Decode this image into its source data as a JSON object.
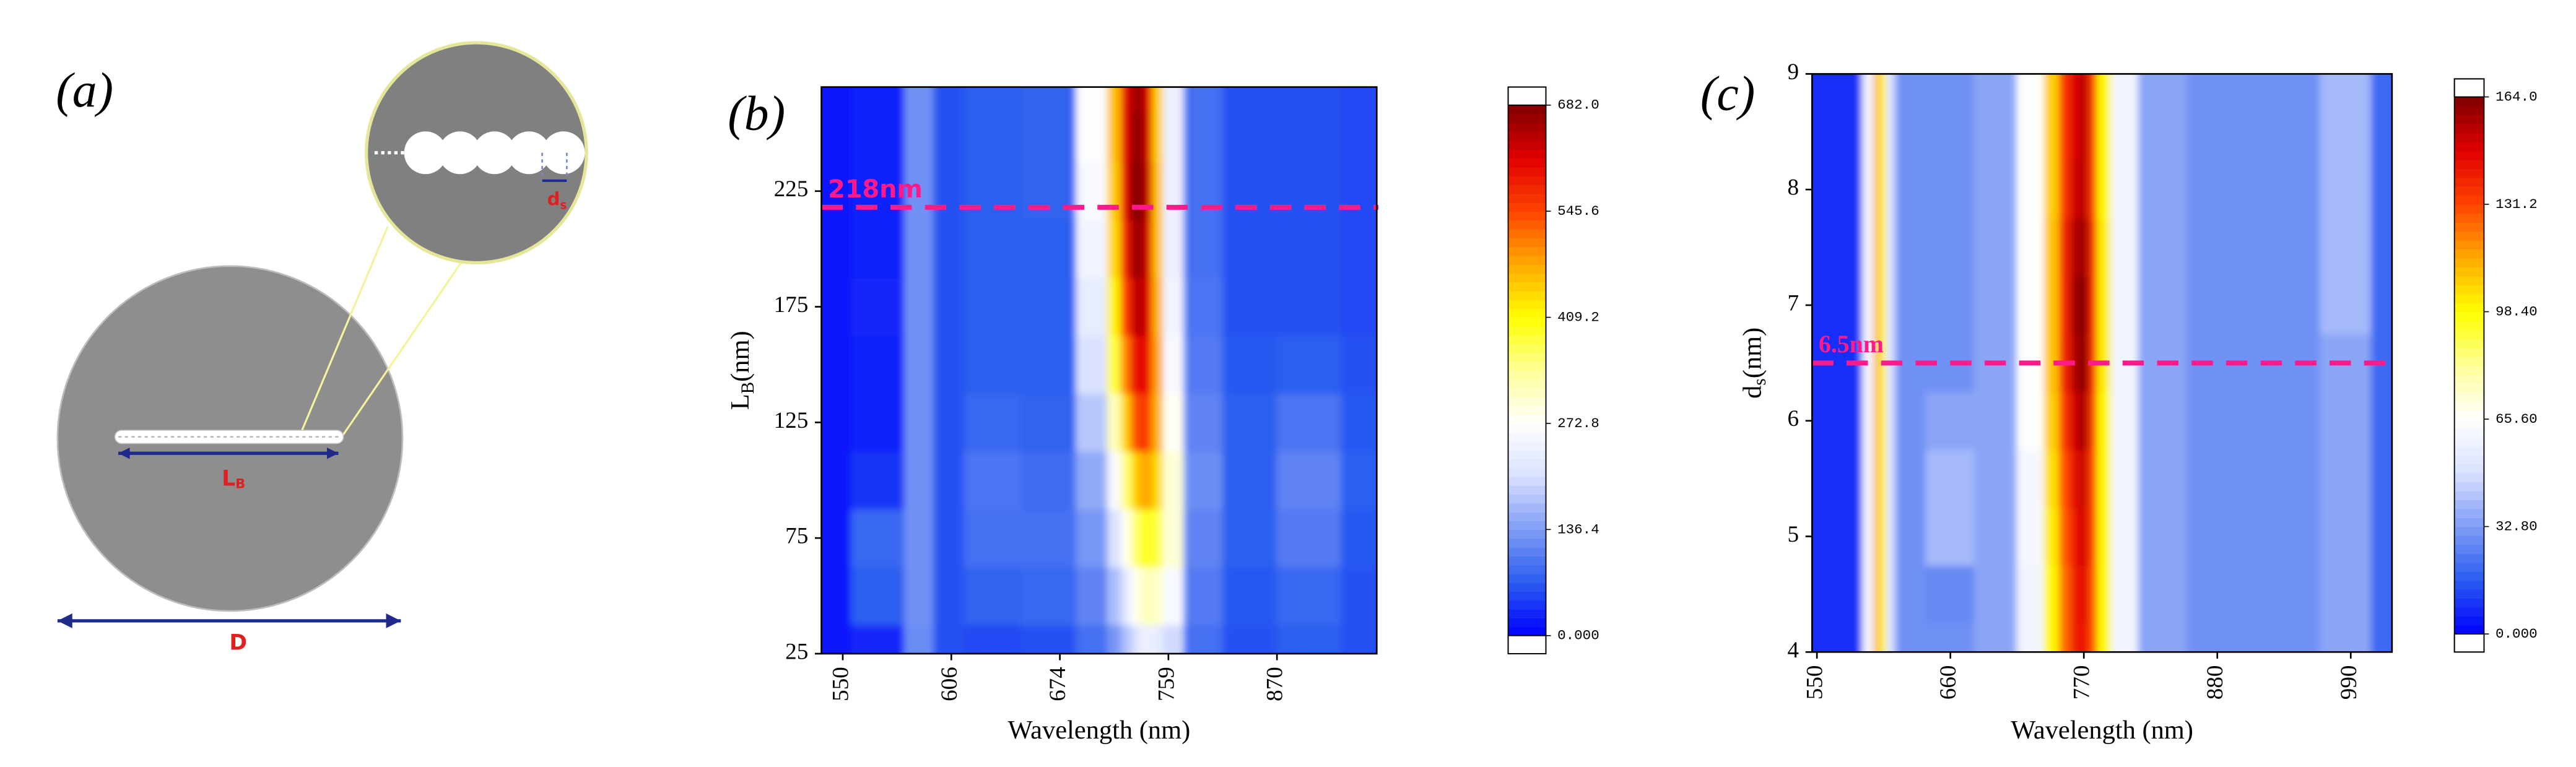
{
  "diagram": {
    "panel_label": "(a)",
    "length_label": {
      "text": "L",
      "subscript": "B"
    },
    "spacing_label": {
      "text": "d",
      "subscript": "s"
    },
    "diameter_label": "D"
  },
  "chart_data": [
    {
      "type": "heatmap",
      "panel_label": "(b)",
      "xlabel": "Wavelength (nm)",
      "ylabel": {
        "text": "L",
        "subscript": "B",
        "suffix": "(nm)"
      },
      "x": [
        539,
        570,
        594,
        600,
        630,
        670,
        705,
        718,
        726,
        732,
        737,
        743,
        750,
        760,
        790,
        840,
        900,
        972
      ],
      "y": [
        25,
        50,
        75,
        100,
        125,
        150,
        175,
        200,
        225,
        250,
        270
      ],
      "z": [
        [
          15,
          30,
          120,
          60,
          55,
          60,
          90,
          130,
          170,
          200,
          230,
          240,
          230,
          200,
          90,
          60,
          70,
          60
        ],
        [
          15,
          70,
          125,
          60,
          75,
          80,
          110,
          170,
          220,
          270,
          300,
          320,
          310,
          260,
          100,
          65,
          80,
          60
        ],
        [
          15,
          80,
          125,
          60,
          90,
          90,
          130,
          210,
          280,
          340,
          380,
          400,
          380,
          300,
          110,
          70,
          100,
          65
        ],
        [
          15,
          40,
          125,
          60,
          95,
          85,
          150,
          260,
          350,
          430,
          470,
          480,
          440,
          300,
          120,
          70,
          110,
          70
        ],
        [
          15,
          25,
          125,
          60,
          80,
          75,
          180,
          320,
          440,
          520,
          560,
          550,
          470,
          280,
          110,
          70,
          95,
          65
        ],
        [
          15,
          25,
          125,
          60,
          70,
          70,
          210,
          380,
          500,
          580,
          610,
          590,
          480,
          260,
          100,
          65,
          70,
          60
        ],
        [
          15,
          30,
          125,
          60,
          70,
          70,
          230,
          420,
          550,
          620,
          650,
          610,
          470,
          250,
          95,
          60,
          60,
          55
        ],
        [
          15,
          25,
          125,
          60,
          70,
          70,
          250,
          440,
          580,
          650,
          670,
          620,
          460,
          240,
          90,
          60,
          60,
          55
        ],
        [
          15,
          25,
          125,
          60,
          70,
          75,
          260,
          450,
          600,
          670,
          682,
          630,
          460,
          240,
          90,
          60,
          60,
          55
        ],
        [
          15,
          25,
          125,
          60,
          70,
          75,
          270,
          460,
          600,
          660,
          675,
          620,
          450,
          240,
          90,
          60,
          60,
          55
        ],
        [
          15,
          25,
          125,
          60,
          70,
          75,
          270,
          460,
          600,
          650,
          670,
          610,
          450,
          240,
          90,
          60,
          60,
          55
        ]
      ],
      "xlim": [
        539,
        972
      ],
      "xticks": [
        550,
        606,
        674,
        759,
        870
      ],
      "ylim": [
        25,
        270
      ],
      "yticks": [
        25,
        75,
        125,
        175,
        225
      ],
      "clim": [
        0,
        682
      ],
      "cticks": [
        {
          "value": 0,
          "label": "0.000"
        },
        136.4,
        272.8,
        409.2,
        545.6,
        {
          "value": 682,
          "label": "682.0"
        }
      ],
      "colormap": [
        "#0000ff",
        "#2a5cf0",
        "#7f9cf5",
        "#d8e0ff",
        "#ffffff",
        "#ffff99",
        "#ffff00",
        "#ffaa00",
        "#ff4400",
        "#e00000",
        "#800000"
      ],
      "hline": {
        "value": 218,
        "label": "218nm",
        "color": "#ff1a8c"
      }
    },
    {
      "type": "heatmap",
      "panel_label": "(c)",
      "xlabel": "Wavelength (nm)",
      "ylabel": {
        "text": "d",
        "subscript": "s",
        "suffix": "(nm)"
      },
      "x": [
        546,
        580,
        595,
        600,
        604,
        610,
        620,
        660,
        700,
        730,
        745,
        755,
        763,
        770,
        777,
        785,
        800,
        830,
        880,
        940,
        990,
        1024
      ],
      "y": [
        4,
        4.5,
        5,
        5.5,
        6,
        6.5,
        7,
        7.5,
        8,
        8.5,
        9
      ],
      "z": [
        [
          8,
          8,
          60,
          115,
          100,
          50,
          30,
          30,
          35,
          60,
          100,
          125,
          140,
          145,
          130,
          100,
          60,
          35,
          30,
          30,
          35,
          20
        ],
        [
          8,
          8,
          60,
          115,
          100,
          50,
          30,
          28,
          35,
          60,
          100,
          125,
          140,
          148,
          130,
          100,
          60,
          35,
          30,
          30,
          35,
          20
        ],
        [
          8,
          8,
          60,
          115,
          100,
          50,
          30,
          40,
          35,
          62,
          102,
          128,
          142,
          150,
          132,
          100,
          60,
          35,
          30,
          30,
          35,
          20
        ],
        [
          8,
          8,
          60,
          115,
          100,
          50,
          30,
          40,
          35,
          62,
          105,
          130,
          145,
          152,
          132,
          100,
          60,
          35,
          30,
          30,
          35,
          20
        ],
        [
          8,
          8,
          60,
          115,
          100,
          50,
          30,
          35,
          35,
          65,
          108,
          135,
          150,
          158,
          135,
          100,
          60,
          35,
          30,
          30,
          35,
          20
        ],
        [
          8,
          8,
          60,
          115,
          100,
          50,
          30,
          30,
          35,
          65,
          110,
          138,
          155,
          164,
          138,
          102,
          60,
          35,
          30,
          30,
          35,
          20
        ],
        [
          8,
          8,
          60,
          115,
          100,
          50,
          30,
          30,
          35,
          65,
          110,
          138,
          158,
          164,
          140,
          102,
          60,
          35,
          30,
          30,
          40,
          20
        ],
        [
          8,
          8,
          60,
          115,
          100,
          50,
          30,
          30,
          35,
          65,
          110,
          138,
          155,
          160,
          138,
          102,
          60,
          35,
          30,
          30,
          40,
          20
        ],
        [
          8,
          8,
          60,
          115,
          100,
          50,
          30,
          30,
          35,
          65,
          108,
          135,
          150,
          155,
          135,
          100,
          60,
          35,
          30,
          30,
          40,
          20
        ],
        [
          8,
          8,
          60,
          115,
          100,
          50,
          30,
          30,
          35,
          65,
          108,
          135,
          148,
          155,
          135,
          100,
          60,
          35,
          30,
          30,
          40,
          20
        ],
        [
          8,
          8,
          60,
          115,
          100,
          50,
          30,
          30,
          35,
          65,
          108,
          135,
          148,
          155,
          135,
          100,
          60,
          35,
          30,
          30,
          40,
          20
        ]
      ],
      "xlim": [
        546,
        1024
      ],
      "xticks": [
        550,
        660,
        770,
        880,
        990
      ],
      "ylim": [
        4,
        9
      ],
      "yticks": [
        4,
        5,
        6,
        7,
        8,
        9
      ],
      "clim": [
        0,
        164
      ],
      "cticks": [
        {
          "value": 0,
          "label": "0.000"
        },
        {
          "value": 32.8,
          "label": "32.80"
        },
        {
          "value": 65.6,
          "label": "65.60"
        },
        {
          "value": 98.4,
          "label": "98.40"
        },
        131.2,
        {
          "value": 164,
          "label": "164.0"
        }
      ],
      "colormap": [
        "#0000ff",
        "#2a5cf0",
        "#7f9cf5",
        "#d8e0ff",
        "#ffffff",
        "#ffff99",
        "#ffff00",
        "#ffaa00",
        "#ff4400",
        "#e00000",
        "#800000"
      ],
      "hline": {
        "value": 6.5,
        "label": "6.5nm",
        "color": "#ff1a8c"
      }
    }
  ]
}
